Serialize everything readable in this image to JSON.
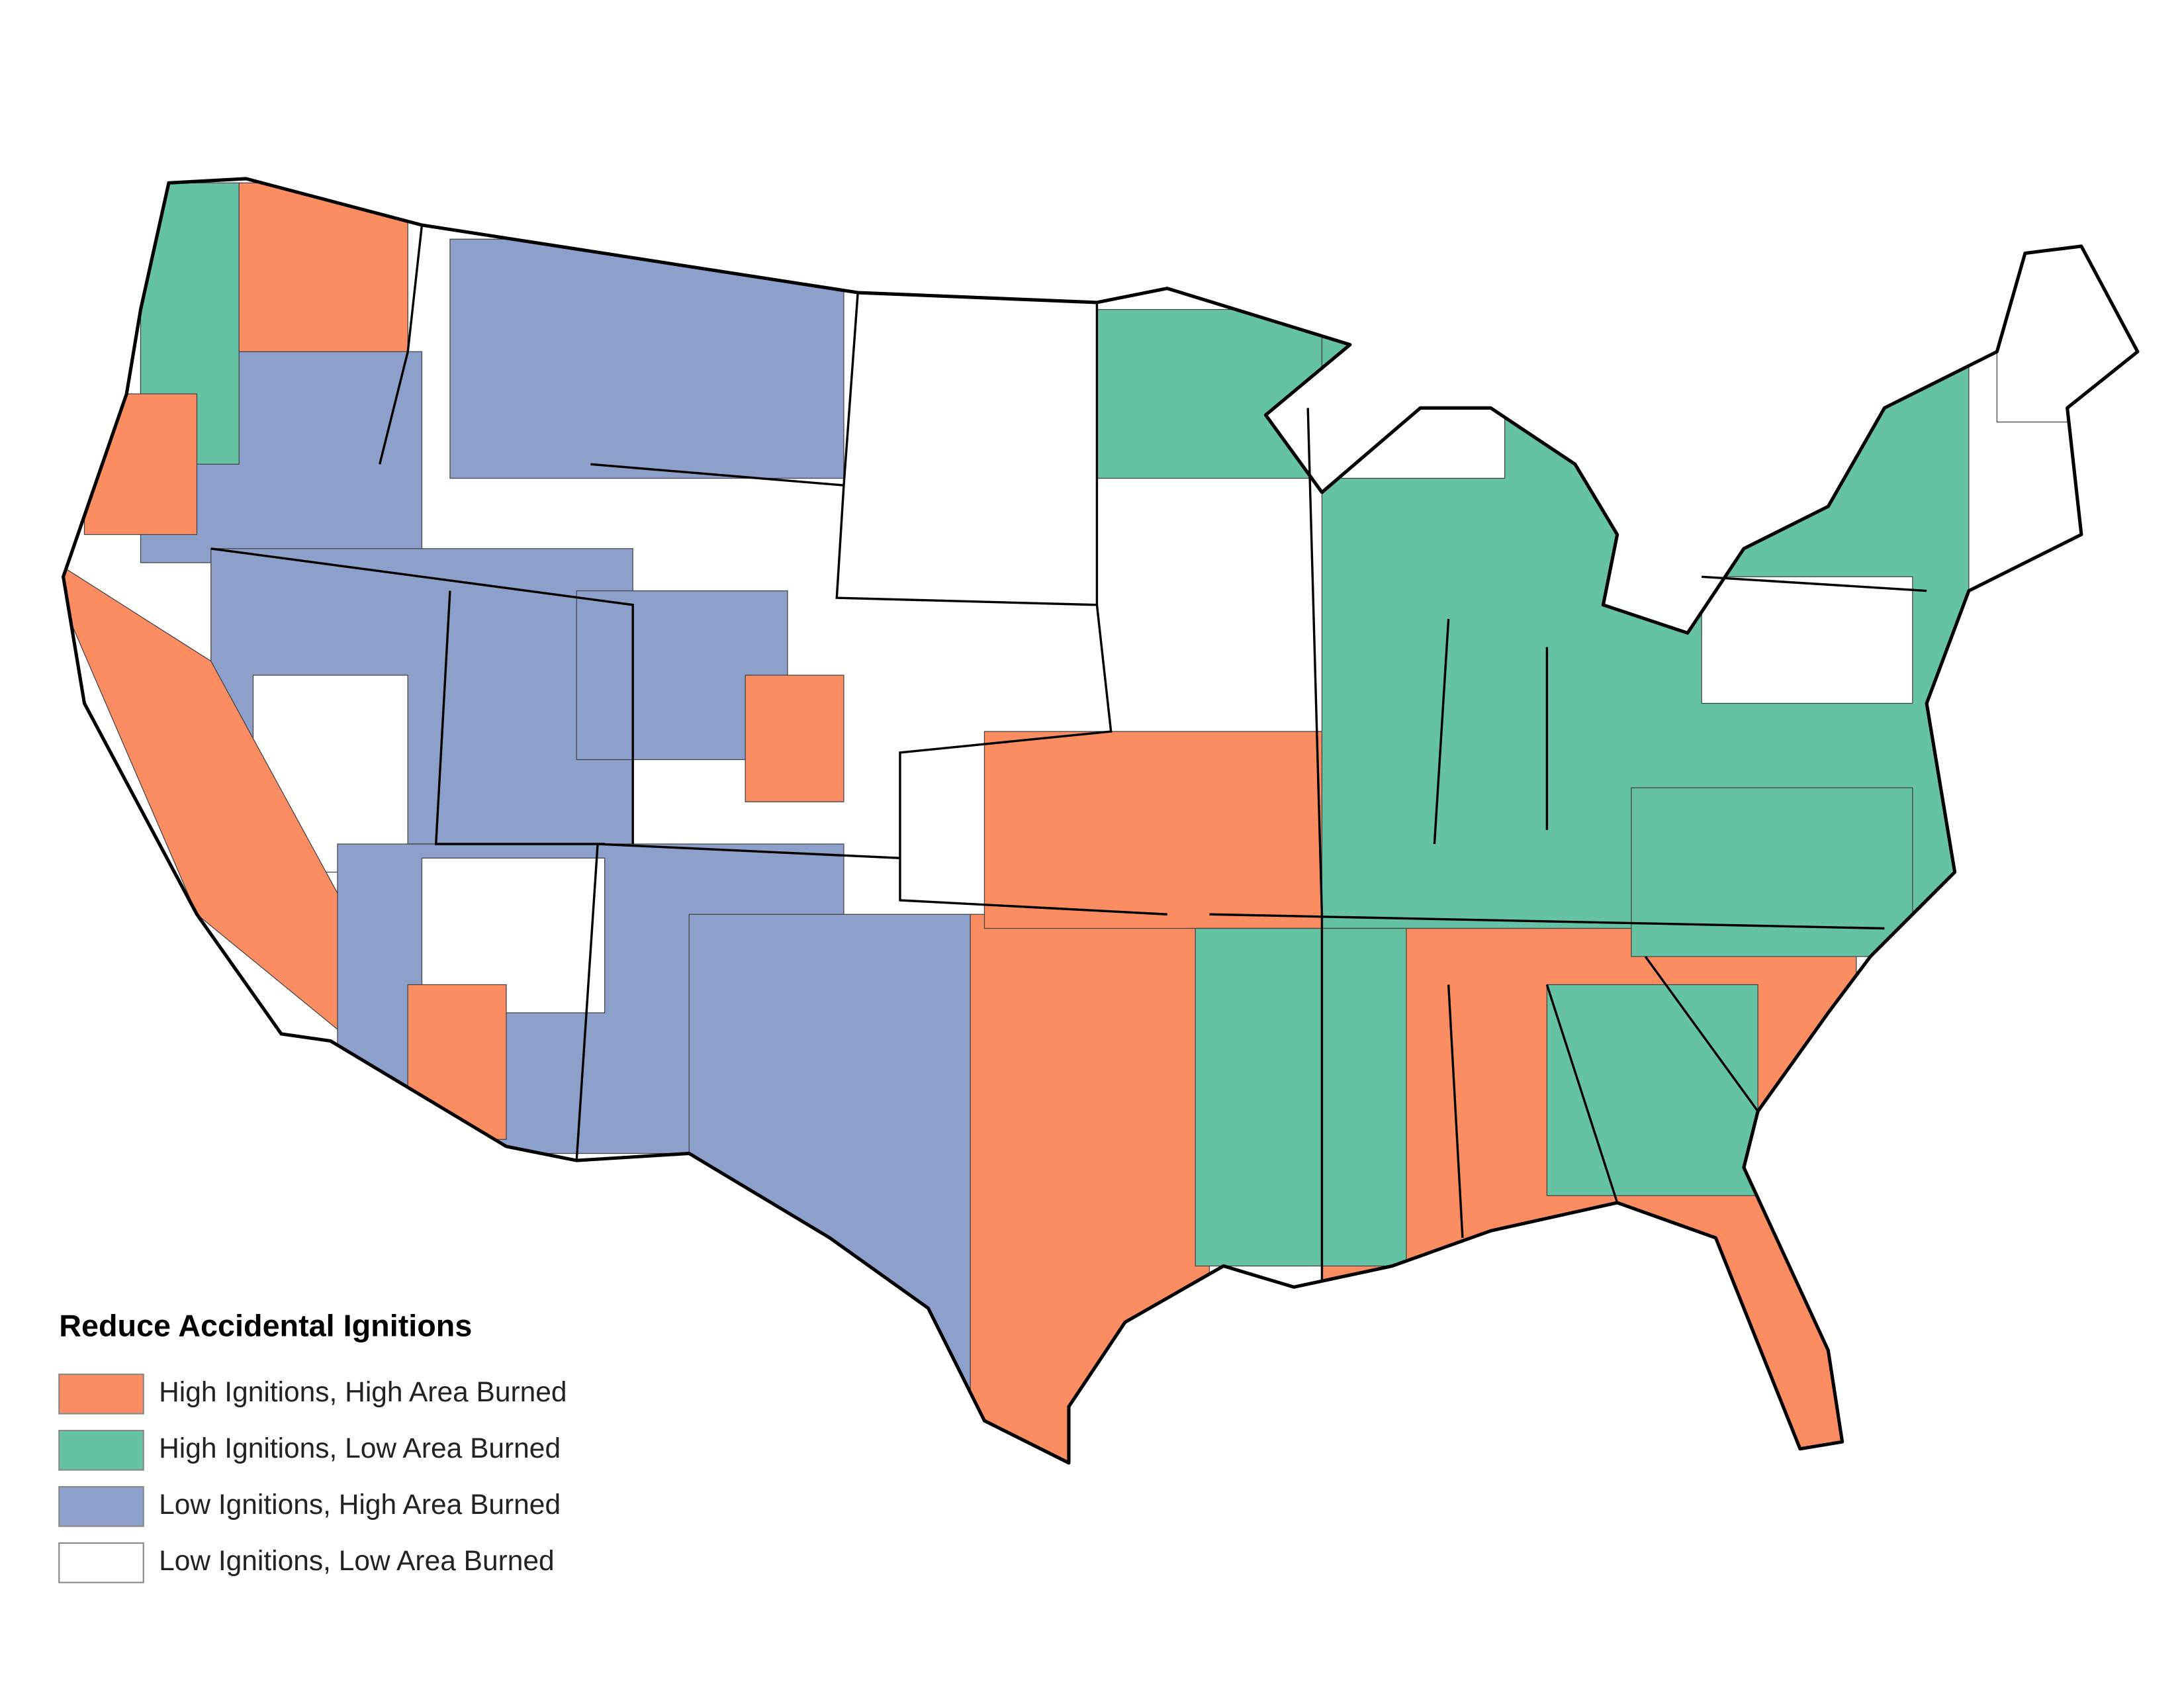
{
  "legend": {
    "title": "Reduce Accidental Ignitions",
    "items": [
      {
        "label": "High Ignitions, High Area Burned",
        "color": "#fc8d62"
      },
      {
        "label": "High Ignitions, Low Area Burned",
        "color": "#66c2a5"
      },
      {
        "label": "Low Ignitions, High Area Burned",
        "color": "#8da0cb"
      },
      {
        "label": "Low Ignitions, Low Area Burned",
        "color": "#ffffff"
      }
    ]
  }
}
